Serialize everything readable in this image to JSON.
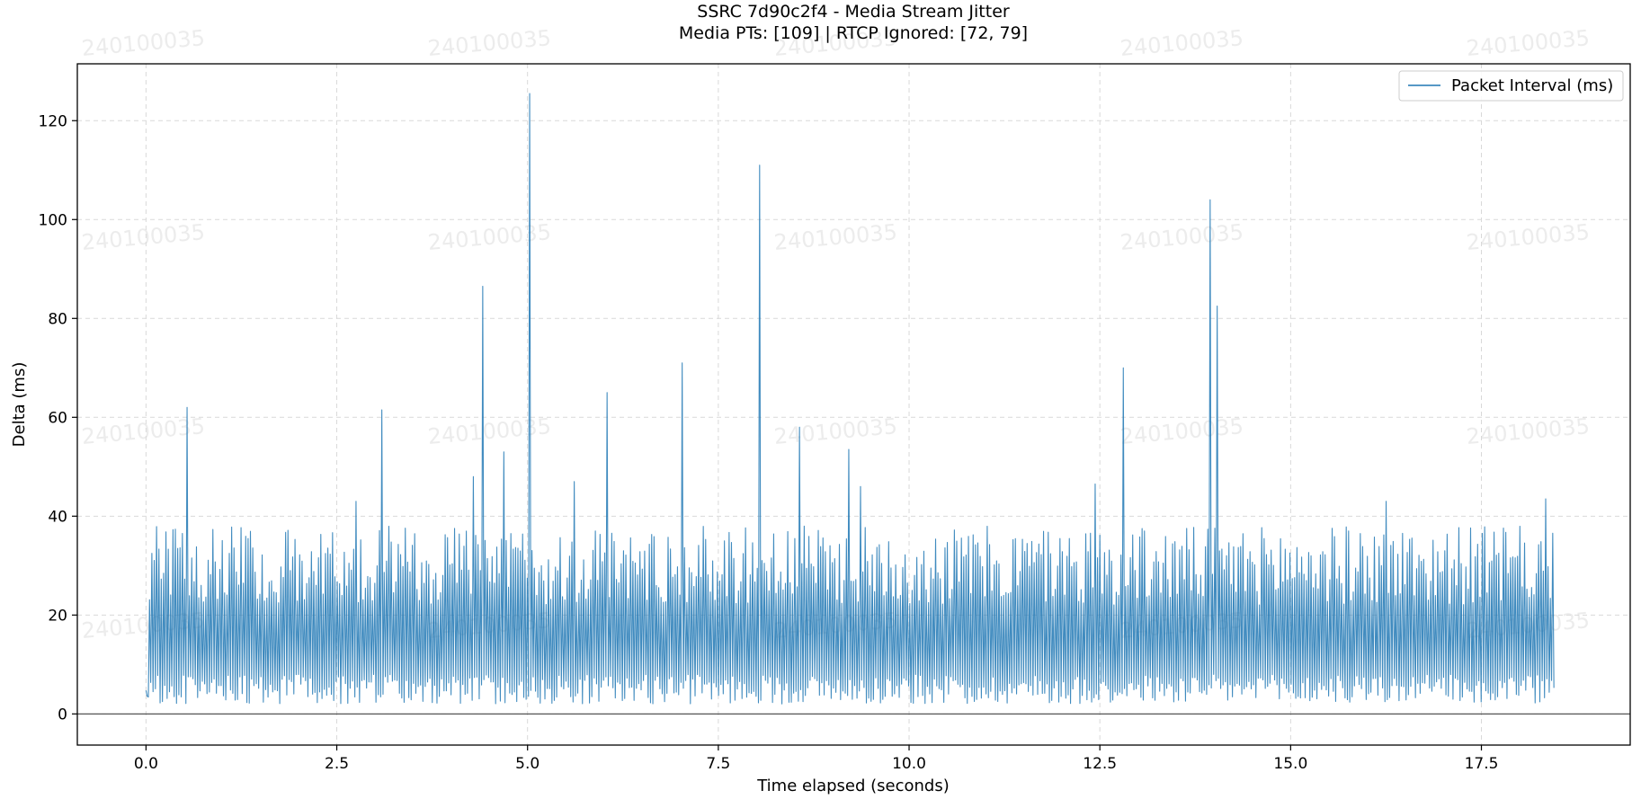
{
  "chart_data": {
    "type": "line",
    "title": "SSRC 7d90c2f4 - Media Stream Jitter",
    "subtitle": "Media PTs: [109] | RTCP Ignored: [72, 79]",
    "xlabel": "Time elapsed (seconds)",
    "ylabel": "Delta (ms)",
    "xlim": [
      -0.9,
      19.45
    ],
    "ylim": [
      -6.3,
      131.5
    ],
    "xticks": [
      0.0,
      2.5,
      5.0,
      7.5,
      10.0,
      12.5,
      15.0,
      17.5
    ],
    "xtick_labels": [
      "0.0",
      "2.5",
      "5.0",
      "7.5",
      "10.0",
      "12.5",
      "15.0",
      "17.5"
    ],
    "yticks": [
      0,
      20,
      40,
      60,
      80,
      100,
      120
    ],
    "ytick_labels": [
      "0",
      "20",
      "40",
      "60",
      "80",
      "100",
      "120"
    ],
    "grid": true,
    "zero_line": true,
    "legend_position": "top-right",
    "watermark_text": "240100035",
    "series": [
      {
        "name": "Packet Interval (ms)",
        "color": "#1f77b4",
        "x_start": 0.0,
        "x_end": 18.45,
        "typical_range": [
          2,
          38
        ],
        "peaks": [
          {
            "x": 0.55,
            "y": 62
          },
          {
            "x": 2.75,
            "y": 43
          },
          {
            "x": 3.1,
            "y": 61.5
          },
          {
            "x": 4.3,
            "y": 48
          },
          {
            "x": 4.42,
            "y": 86.5
          },
          {
            "x": 4.68,
            "y": 53
          },
          {
            "x": 5.02,
            "y": 125.5
          },
          {
            "x": 5.62,
            "y": 47
          },
          {
            "x": 6.05,
            "y": 65
          },
          {
            "x": 7.02,
            "y": 71
          },
          {
            "x": 8.05,
            "y": 111
          },
          {
            "x": 8.57,
            "y": 58
          },
          {
            "x": 9.22,
            "y": 53.5
          },
          {
            "x": 9.35,
            "y": 46
          },
          {
            "x": 12.45,
            "y": 46.5
          },
          {
            "x": 12.8,
            "y": 70
          },
          {
            "x": 13.95,
            "y": 104
          },
          {
            "x": 14.05,
            "y": 82.5
          },
          {
            "x": 16.25,
            "y": 43
          },
          {
            "x": 18.35,
            "y": 43.5
          }
        ]
      }
    ]
  }
}
